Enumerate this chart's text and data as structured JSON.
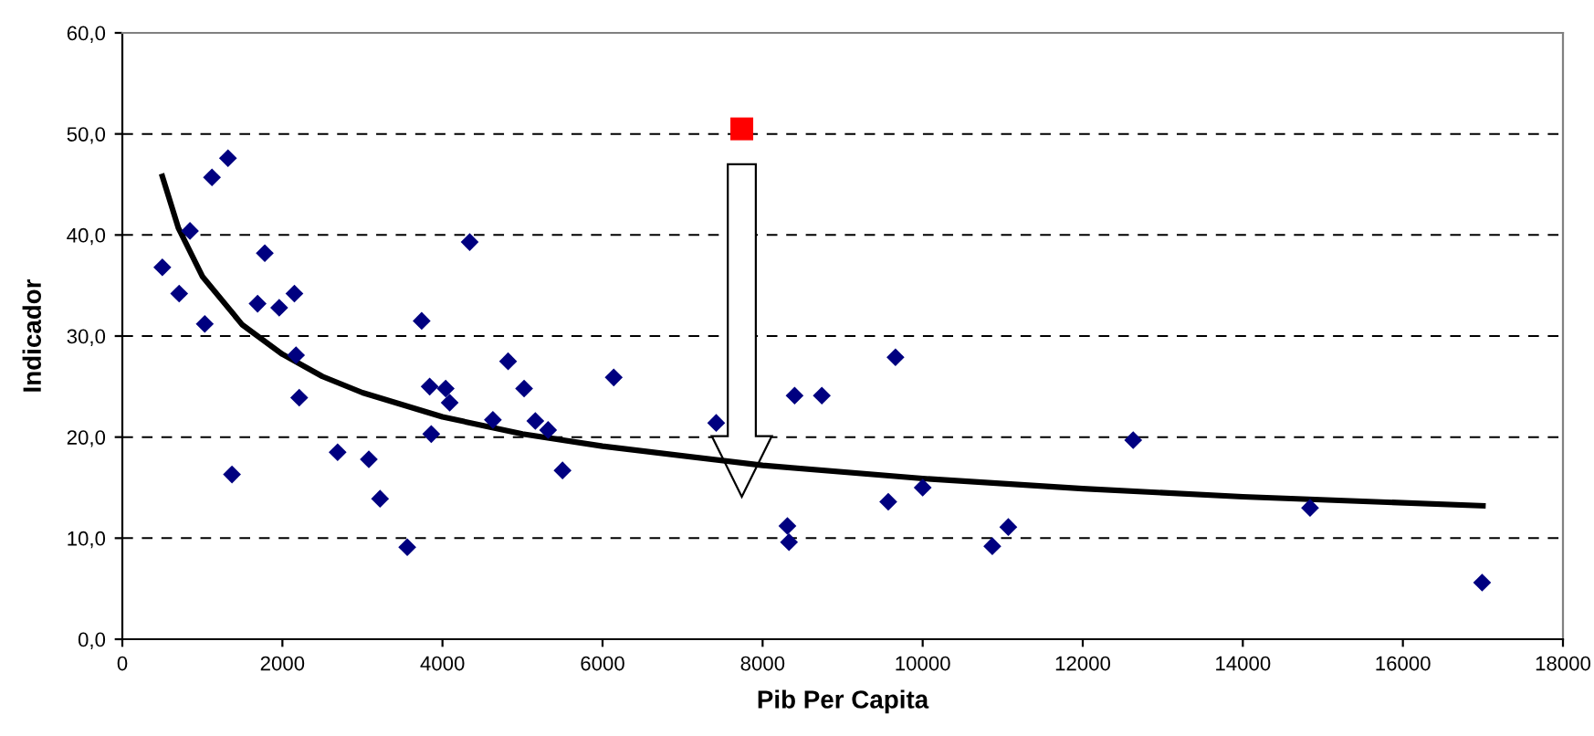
{
  "chart_data": {
    "type": "scatter",
    "xlabel": "Pib Per Capita",
    "ylabel": "Indicador",
    "xlim": [
      0,
      18000
    ],
    "xticks": [
      0,
      2000,
      4000,
      6000,
      8000,
      10000,
      12000,
      14000,
      16000,
      18000
    ],
    "ylim": [
      0,
      60
    ],
    "yticks": [
      {
        "value": 0,
        "label": "0,0"
      },
      {
        "value": 10,
        "label": "10,0"
      },
      {
        "value": 20,
        "label": "20,0"
      },
      {
        "value": 30,
        "label": "30,0"
      },
      {
        "value": 40,
        "label": "40,0"
      },
      {
        "value": 50,
        "label": "50,0"
      },
      {
        "value": 60,
        "label": "60,0"
      }
    ],
    "grid": "y",
    "series": [
      {
        "marker": "diamond",
        "color": "#000080",
        "x": [
          500,
          710,
          845,
          1030,
          1120,
          1320,
          1370,
          1690,
          1780,
          1960,
          2150,
          2170,
          2210,
          2690,
          3080,
          3220,
          3560,
          3740,
          3840,
          3860,
          4040,
          4090,
          4340,
          4630,
          4820,
          5020,
          5160,
          5320,
          5500,
          6140,
          7420,
          8310,
          8330,
          8400,
          8740,
          9570,
          9660,
          10000,
          10870,
          11070,
          12630,
          14840,
          16990
        ],
        "values": [
          36.8,
          34.2,
          40.4,
          31.2,
          45.7,
          47.6,
          16.3,
          33.2,
          38.2,
          32.8,
          34.2,
          28.1,
          23.9,
          18.5,
          17.8,
          13.9,
          9.1,
          31.5,
          25.0,
          20.3,
          24.8,
          23.4,
          39.3,
          21.7,
          27.5,
          24.8,
          21.6,
          20.7,
          16.7,
          25.9,
          21.4,
          11.2,
          9.6,
          24.1,
          24.1,
          13.6,
          27.9,
          15.0,
          9.2,
          11.1,
          19.7,
          13.0,
          5.6
        ]
      },
      {
        "marker": "square",
        "color": "#ff0000",
        "x": [
          7740
        ],
        "values": [
          50.5
        ]
      },
      {
        "type": "line",
        "marker": "none",
        "line_style": "solid",
        "color": "#000000",
        "x": [
          500,
          700,
          1000,
          1500,
          2000,
          2500,
          3000,
          4000,
          5000,
          6000,
          8000,
          10000,
          12000,
          14000,
          17000
        ],
        "values": [
          45.8,
          40.7,
          35.9,
          31.1,
          28.2,
          26.0,
          24.4,
          22.0,
          20.3,
          19.1,
          17.2,
          15.9,
          14.9,
          14.1,
          13.2
        ]
      }
    ]
  }
}
